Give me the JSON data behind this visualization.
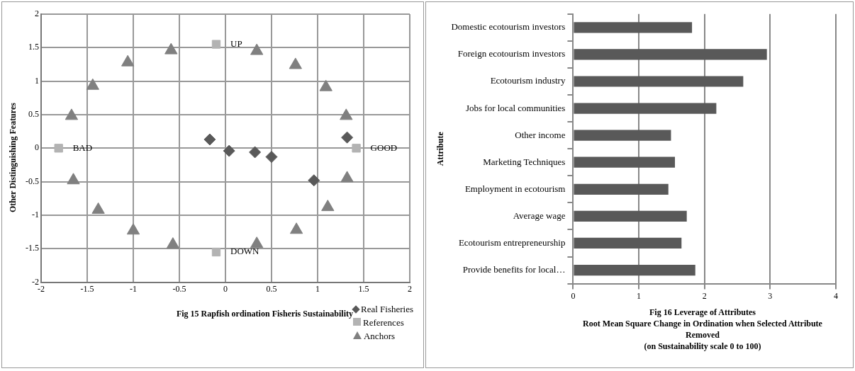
{
  "chart_data": [
    {
      "type": "scatter",
      "title": "Fig 15  Rapfish ordination  Fisheris Sustainability",
      "ylabel": "Other Distinguishing Features",
      "xlim": [
        -2,
        2
      ],
      "ylim": [
        -2,
        2
      ],
      "xticks": [
        -2,
        -1.5,
        -1,
        -0.5,
        0,
        0.5,
        1,
        1.5,
        2
      ],
      "yticks": [
        -2,
        -1.5,
        -1,
        -0.5,
        0,
        0.5,
        1,
        1.5,
        2
      ],
      "grid": true,
      "legend": "bottom right",
      "series": [
        {
          "name": "Real Fisheries",
          "color": "#595959",
          "marker": "diamond",
          "x": [
            -0.17,
            0.04,
            0.32,
            0.5,
            0.96,
            1.32
          ],
          "values": [
            0.13,
            -0.04,
            -0.06,
            -0.13,
            -0.48,
            0.16
          ]
        },
        {
          "name": "References",
          "color": "#b3b3b3",
          "marker": "square",
          "x": [
            -1.81,
            1.42,
            -0.1,
            -0.1
          ],
          "values": [
            0,
            0,
            1.55,
            -1.55
          ]
        },
        {
          "name": "Anchors",
          "color": "#808080",
          "marker": "triangle",
          "x": [
            -0.59,
            -1.06,
            -1.44,
            -1.67,
            -1.65,
            -1.38,
            -1.0,
            -0.57,
            0.34,
            0.77,
            1.11,
            1.32,
            1.31,
            1.09,
            0.76,
            0.34
          ],
          "values": [
            1.46,
            1.28,
            0.93,
            0.48,
            -0.48,
            -0.92,
            -1.23,
            -1.44,
            -1.43,
            -1.22,
            -0.88,
            -0.45,
            0.48,
            0.91,
            1.24,
            1.45
          ]
        }
      ],
      "annotations": [
        {
          "text": "BAD",
          "x": -1.81,
          "y": 0
        },
        {
          "text": "GOOD",
          "x": 1.42,
          "y": 0
        },
        {
          "text": "UP",
          "x": -0.1,
          "y": 1.55
        },
        {
          "text": "DOWN",
          "x": -0.1,
          "y": -1.55
        }
      ]
    },
    {
      "type": "bar",
      "orientation": "horizontal",
      "title": "Fig 16  Leverage of Attributes",
      "xlabel": "Root Mean Square Change in Ordination when Selected Attribute Removed",
      "subtitle": "(on Sustainability scale 0 to 100)",
      "ylabel": "Attribute",
      "categories": [
        "Domestic ecotourism investors",
        "Foreign ecotourism investors",
        "Ecotourism industry",
        "Jobs for local communities",
        "Other income",
        "Marketing Techniques",
        "Employment in ecotourism",
        "Average wage",
        "Ecotourism entrepreneurship",
        "Provide benefits for local…"
      ],
      "values": [
        1.81,
        2.95,
        2.59,
        2.18,
        1.49,
        1.55,
        1.45,
        1.73,
        1.65,
        1.86
      ],
      "color": "#595959",
      "xlim": [
        0,
        4
      ],
      "xticks": [
        0,
        1,
        2,
        3,
        4
      ],
      "grid": "x",
      "legend": false
    }
  ]
}
